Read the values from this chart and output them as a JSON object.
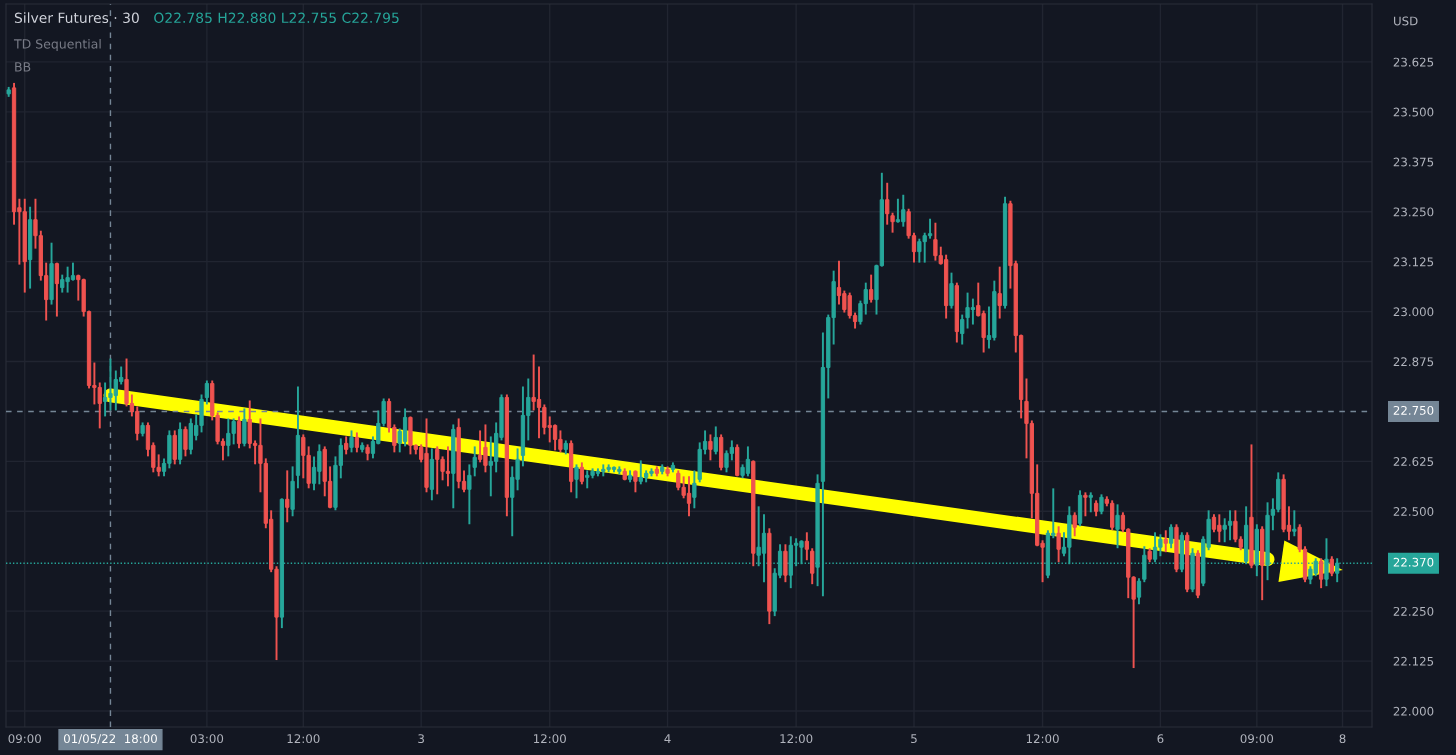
{
  "chart_data": {
    "type": "candlestick",
    "title": "Silver Futures · 30",
    "annotations": [
      "O22.785 H22.880 L22.755 C22.795",
      "TD Sequential",
      "BB",
      "USD"
    ],
    "categories": [
      null,
      null,
      null,
      "09:00",
      null,
      null,
      null,
      null,
      null,
      null,
      null,
      null,
      null,
      null,
      null,
      null,
      null,
      null,
      null,
      "01/05/22  18:00",
      null,
      null,
      null,
      null,
      null,
      null,
      null,
      null,
      null,
      null,
      null,
      null,
      null,
      null,
      null,
      null,
      null,
      "03:00",
      null,
      null,
      null,
      null,
      null,
      null,
      null,
      null,
      null,
      null,
      null,
      null,
      null,
      null,
      null,
      null,
      null,
      "12:00",
      null,
      null,
      null,
      null,
      null,
      null,
      null,
      null,
      null,
      null,
      null,
      null,
      null,
      null,
      null,
      null,
      null,
      null,
      null,
      null,
      null,
      "3",
      null,
      null,
      null,
      null,
      null,
      null,
      null,
      null,
      null,
      null,
      null,
      null,
      null,
      null,
      null,
      null,
      null,
      null,
      null,
      null,
      null,
      null,
      null,
      "12:00",
      null,
      null,
      null,
      null,
      null,
      null,
      null,
      null,
      null,
      null,
      null,
      null,
      null,
      null,
      null,
      null,
      null,
      null,
      null,
      null,
      null,
      "4",
      null,
      null,
      null,
      null,
      null,
      null,
      null,
      null,
      null,
      null,
      null,
      null,
      null,
      null,
      null,
      null,
      null,
      null,
      null,
      null,
      null,
      null,
      null,
      "12:00",
      null,
      null,
      null,
      null,
      null,
      null,
      null,
      null,
      null,
      null,
      null,
      null,
      null,
      null,
      null,
      null,
      null,
      null,
      null,
      null,
      null,
      "5",
      null,
      null,
      null,
      null,
      null,
      null,
      null,
      null,
      null,
      null,
      null,
      null,
      null,
      null,
      null,
      null,
      null,
      null,
      null,
      null,
      null,
      null,
      null,
      "12:00",
      null,
      null,
      null,
      null,
      null,
      null,
      null,
      null,
      null,
      null,
      null,
      null,
      null,
      null,
      null,
      null,
      null,
      null,
      null,
      null,
      null,
      "6",
      null,
      null,
      null,
      null,
      null,
      null,
      null,
      null,
      null,
      null,
      null,
      null,
      null,
      null,
      null,
      null,
      null,
      "09:00",
      null,
      null,
      null,
      null,
      null,
      null,
      null,
      null,
      null,
      null,
      null,
      null,
      null,
      null,
      null,
      "8",
      null,
      null,
      null,
      null,
      null
    ],
    "ohlc": [
      [
        23.545,
        23.56,
        23.54,
        23.555
      ],
      [
        23.56,
        23.57,
        23.22,
        23.25
      ],
      [
        23.26,
        23.28,
        23.12,
        23.25
      ],
      [
        23.25,
        23.28,
        23.05,
        23.125
      ],
      [
        23.13,
        23.26,
        23.06,
        23.23
      ],
      [
        23.23,
        23.28,
        23.16,
        23.19
      ],
      [
        23.19,
        23.2,
        23.08,
        23.09
      ],
      [
        23.09,
        23.12,
        22.98,
        23.03
      ],
      [
        23.03,
        23.17,
        23.02,
        23.12
      ],
      [
        23.12,
        23.12,
        22.99,
        23.07
      ],
      [
        23.06,
        23.09,
        23.05,
        23.08
      ],
      [
        23.075,
        23.11,
        23.05,
        23.085
      ],
      [
        23.08,
        23.12,
        23.08,
        23.09
      ],
      [
        23.09,
        23.09,
        23.03,
        23.08
      ],
      [
        23.08,
        23.08,
        22.99,
        23.0
      ],
      [
        23.0,
        23.0,
        22.81,
        22.815
      ],
      [
        22.815,
        22.87,
        22.77,
        22.81
      ],
      [
        22.81,
        22.82,
        22.71,
        22.77
      ],
      [
        22.775,
        22.82,
        22.74,
        22.785
      ],
      [
        22.785,
        22.88,
        22.755,
        22.795
      ],
      [
        22.79,
        22.85,
        22.755,
        22.83
      ],
      [
        22.825,
        22.86,
        22.82,
        22.835
      ],
      [
        22.83,
        22.88,
        22.765,
        22.77
      ],
      [
        22.77,
        22.79,
        22.74,
        22.75
      ],
      [
        22.75,
        22.76,
        22.68,
        22.695
      ],
      [
        22.695,
        22.72,
        22.69,
        22.715
      ],
      [
        22.715,
        22.72,
        22.64,
        22.655
      ],
      [
        22.665,
        22.67,
        22.6,
        22.61
      ],
      [
        22.61,
        22.64,
        22.59,
        22.6
      ],
      [
        22.6,
        22.63,
        22.59,
        22.62
      ],
      [
        22.62,
        22.7,
        22.61,
        22.69
      ],
      [
        22.69,
        22.7,
        22.62,
        22.63
      ],
      [
        22.63,
        22.72,
        22.62,
        22.705
      ],
      [
        22.705,
        22.71,
        22.64,
        22.655
      ],
      [
        22.655,
        22.73,
        22.645,
        22.72
      ],
      [
        22.69,
        22.74,
        22.68,
        22.715
      ],
      [
        22.715,
        22.79,
        22.7,
        22.78
      ],
      [
        22.785,
        22.825,
        22.77,
        22.82
      ],
      [
        22.82,
        22.825,
        22.73,
        22.74
      ],
      [
        22.74,
        22.745,
        22.67,
        22.675
      ],
      [
        22.675,
        22.68,
        22.63,
        22.665
      ],
      [
        22.665,
        22.73,
        22.64,
        22.695
      ],
      [
        22.695,
        22.73,
        22.67,
        22.725
      ],
      [
        22.725,
        22.735,
        22.66,
        22.67
      ],
      [
        22.67,
        22.755,
        22.665,
        22.73
      ],
      [
        22.73,
        22.775,
        22.66,
        22.67
      ],
      [
        22.67,
        22.675,
        22.62,
        22.665
      ],
      [
        22.665,
        22.73,
        22.55,
        22.62
      ],
      [
        22.62,
        22.63,
        22.46,
        22.47
      ],
      [
        22.48,
        22.5,
        22.35,
        22.355
      ],
      [
        22.355,
        22.36,
        22.13,
        22.235
      ],
      [
        22.235,
        22.53,
        22.21,
        22.53
      ],
      [
        22.53,
        22.6,
        22.475,
        22.51
      ],
      [
        22.505,
        22.61,
        22.49,
        22.575
      ],
      [
        22.59,
        22.81,
        22.56,
        22.69
      ],
      [
        22.685,
        22.69,
        22.585,
        22.64
      ],
      [
        22.64,
        22.66,
        22.56,
        22.57
      ],
      [
        22.57,
        22.635,
        22.555,
        22.61
      ],
      [
        22.6,
        22.665,
        22.57,
        22.65
      ],
      [
        22.655,
        22.66,
        22.54,
        22.575
      ],
      [
        22.575,
        22.61,
        22.51,
        22.51
      ],
      [
        22.51,
        22.635,
        22.505,
        22.615
      ],
      [
        22.615,
        22.68,
        22.585,
        22.665
      ],
      [
        22.67,
        22.685,
        22.645,
        22.655
      ],
      [
        22.66,
        22.7,
        22.65,
        22.685
      ],
      [
        22.685,
        22.695,
        22.65,
        22.66
      ],
      [
        22.655,
        22.67,
        22.65,
        22.665
      ],
      [
        22.66,
        22.665,
        22.63,
        22.645
      ],
      [
        22.645,
        22.685,
        22.635,
        22.675
      ],
      [
        22.67,
        22.75,
        22.67,
        22.72
      ],
      [
        22.72,
        22.78,
        22.715,
        22.775
      ],
      [
        22.775,
        22.78,
        22.7,
        22.71
      ],
      [
        22.71,
        22.715,
        22.65,
        22.665
      ],
      [
        22.67,
        22.705,
        22.65,
        22.7
      ],
      [
        22.675,
        22.755,
        22.665,
        22.735
      ],
      [
        22.735,
        22.735,
        22.645,
        22.665
      ],
      [
        22.665,
        22.665,
        22.645,
        22.655
      ],
      [
        22.66,
        22.665,
        22.625,
        22.63
      ],
      [
        22.645,
        22.73,
        22.55,
        22.56
      ],
      [
        22.555,
        22.655,
        22.53,
        22.63
      ],
      [
        22.655,
        22.66,
        22.545,
        22.63
      ],
      [
        22.63,
        22.635,
        22.58,
        22.6
      ],
      [
        22.6,
        22.66,
        22.565,
        22.595
      ],
      [
        22.595,
        22.715,
        22.51,
        22.705
      ],
      [
        22.71,
        22.73,
        22.56,
        22.575
      ],
      [
        22.575,
        22.6,
        22.55,
        22.555
      ],
      [
        22.555,
        22.615,
        22.47,
        22.59
      ],
      [
        22.61,
        22.66,
        22.59,
        22.635
      ],
      [
        22.64,
        22.7,
        22.625,
        22.63
      ],
      [
        22.66,
        22.715,
        22.6,
        22.615
      ],
      [
        22.615,
        22.685,
        22.54,
        22.625
      ],
      [
        22.625,
        22.72,
        22.6,
        22.695
      ],
      [
        22.685,
        22.79,
        22.68,
        22.785
      ],
      [
        22.785,
        22.79,
        22.49,
        22.535
      ],
      [
        22.535,
        22.61,
        22.44,
        22.585
      ],
      [
        22.58,
        22.655,
        22.555,
        22.63
      ],
      [
        22.64,
        22.81,
        22.615,
        22.74
      ],
      [
        22.74,
        22.83,
        22.68,
        22.785
      ],
      [
        22.785,
        22.89,
        22.755,
        22.775
      ],
      [
        22.78,
        22.86,
        22.685,
        22.76
      ],
      [
        22.76,
        22.765,
        22.695,
        22.71
      ],
      [
        22.715,
        22.735,
        22.675,
        22.71
      ],
      [
        22.715,
        22.715,
        22.655,
        22.68
      ],
      [
        22.68,
        22.7,
        22.65,
        22.655
      ],
      [
        22.655,
        22.675,
        22.645,
        22.67
      ],
      [
        22.67,
        22.675,
        22.55,
        22.575
      ],
      [
        22.58,
        22.615,
        22.535,
        22.61
      ],
      [
        22.61,
        22.62,
        22.57,
        22.575
      ],
      [
        22.585,
        22.6,
        22.56,
        22.59
      ],
      [
        22.59,
        22.605,
        22.585,
        22.6
      ],
      [
        22.595,
        22.605,
        22.59,
        22.6
      ],
      [
        22.6,
        22.615,
        22.59,
        22.605
      ],
      [
        22.605,
        22.615,
        22.6,
        22.61
      ],
      [
        22.605,
        22.61,
        22.6,
        22.61
      ],
      [
        22.6,
        22.61,
        22.595,
        22.605
      ],
      [
        22.6,
        22.605,
        22.58,
        22.58
      ],
      [
        22.58,
        22.6,
        22.575,
        22.59
      ],
      [
        22.6,
        22.6,
        22.55,
        22.575
      ],
      [
        22.575,
        22.625,
        22.57,
        22.585
      ],
      [
        22.585,
        22.6,
        22.575,
        22.595
      ],
      [
        22.595,
        22.605,
        22.59,
        22.6
      ],
      [
        22.605,
        22.61,
        22.59,
        22.595
      ],
      [
        22.6,
        22.615,
        22.595,
        22.61
      ],
      [
        22.605,
        22.61,
        22.59,
        22.595
      ],
      [
        22.605,
        22.62,
        22.6,
        22.615
      ],
      [
        22.595,
        22.6,
        22.555,
        22.56
      ],
      [
        22.56,
        22.585,
        22.535,
        22.54
      ],
      [
        22.545,
        22.585,
        22.49,
        22.52
      ],
      [
        22.535,
        22.6,
        22.51,
        22.57
      ],
      [
        22.58,
        22.67,
        22.575,
        22.655
      ],
      [
        22.655,
        22.7,
        22.645,
        22.675
      ],
      [
        22.675,
        22.69,
        22.63,
        22.655
      ],
      [
        22.65,
        22.71,
        22.645,
        22.685
      ],
      [
        22.685,
        22.69,
        22.605,
        22.61
      ],
      [
        22.61,
        22.65,
        22.6,
        22.645
      ],
      [
        22.645,
        22.675,
        22.63,
        22.66
      ],
      [
        22.66,
        22.665,
        22.59,
        22.59
      ],
      [
        22.59,
        22.615,
        22.585,
        22.61
      ],
      [
        22.595,
        22.66,
        22.59,
        22.63
      ],
      [
        22.625,
        22.625,
        22.365,
        22.395
      ],
      [
        22.39,
        22.51,
        22.365,
        22.41
      ],
      [
        22.395,
        22.49,
        22.325,
        22.445
      ],
      [
        22.445,
        22.455,
        22.22,
        22.25
      ],
      [
        22.25,
        22.355,
        22.24,
        22.345
      ],
      [
        22.34,
        22.415,
        22.335,
        22.4
      ],
      [
        22.4,
        22.415,
        22.325,
        22.34
      ],
      [
        22.34,
        22.435,
        22.31,
        22.415
      ],
      [
        22.415,
        22.43,
        22.365,
        22.42
      ],
      [
        22.41,
        22.425,
        22.37,
        22.425
      ],
      [
        22.425,
        22.445,
        22.38,
        22.405
      ],
      [
        22.4,
        22.405,
        22.32,
        22.345
      ],
      [
        22.36,
        22.59,
        22.315,
        22.57
      ],
      [
        22.575,
        22.945,
        22.29,
        22.86
      ],
      [
        22.86,
        22.99,
        22.785,
        22.985
      ],
      [
        22.985,
        23.1,
        22.92,
        23.075
      ],
      [
        23.06,
        23.125,
        23.02,
        23.04
      ],
      [
        23.045,
        23.05,
        23.0,
        23.005
      ],
      [
        23.04,
        23.045,
        22.985,
        22.99
      ],
      [
        22.99,
        22.995,
        22.96,
        22.975
      ],
      [
        22.975,
        23.025,
        22.97,
        23.02
      ],
      [
        23.02,
        23.07,
        22.995,
        23.055
      ],
      [
        23.055,
        23.09,
        23.025,
        23.03
      ],
      [
        23.03,
        23.115,
        22.995,
        23.115
      ],
      [
        23.115,
        23.345,
        23.115,
        23.28
      ],
      [
        23.28,
        23.32,
        23.22,
        23.245
      ],
      [
        23.24,
        23.245,
        23.2,
        23.225
      ],
      [
        23.225,
        23.28,
        23.225,
        23.23
      ],
      [
        23.225,
        23.29,
        23.215,
        23.255
      ],
      [
        23.25,
        23.255,
        23.185,
        23.19
      ],
      [
        23.19,
        23.195,
        23.125,
        23.15
      ],
      [
        23.15,
        23.18,
        23.125,
        23.175
      ],
      [
        23.175,
        23.195,
        23.125,
        23.19
      ],
      [
        23.19,
        23.23,
        23.185,
        23.195
      ],
      [
        23.18,
        23.22,
        23.13,
        23.14
      ],
      [
        23.14,
        23.16,
        23.12,
        23.12
      ],
      [
        23.13,
        23.14,
        22.985,
        23.015
      ],
      [
        23.015,
        23.095,
        23.01,
        23.07
      ],
      [
        23.065,
        23.07,
        22.925,
        22.95
      ],
      [
        22.945,
        22.99,
        22.92,
        22.98
      ],
      [
        22.985,
        23.045,
        22.96,
        23.01
      ],
      [
        23.005,
        23.03,
        22.97,
        23.01
      ],
      [
        23.015,
        23.07,
        22.99,
        22.99
      ],
      [
        22.995,
        23.0,
        22.9,
        22.935
      ],
      [
        22.93,
        23.01,
        22.91,
        22.94
      ],
      [
        22.935,
        23.075,
        22.93,
        23.05
      ],
      [
        23.045,
        23.11,
        22.985,
        23.015
      ],
      [
        23.015,
        23.285,
        23.01,
        23.27
      ],
      [
        23.27,
        23.275,
        23.06,
        23.115
      ],
      [
        23.12,
        23.125,
        22.9,
        22.94
      ],
      [
        22.94,
        22.94,
        22.735,
        22.78
      ],
      [
        22.775,
        22.83,
        22.635,
        22.72
      ],
      [
        22.72,
        22.725,
        22.485,
        22.545
      ],
      [
        22.545,
        22.615,
        22.415,
        22.415
      ],
      [
        22.42,
        22.425,
        22.325,
        22.41
      ],
      [
        22.34,
        22.45,
        22.335,
        22.445
      ],
      [
        22.44,
        22.555,
        22.435,
        22.445
      ],
      [
        22.445,
        22.46,
        22.375,
        22.405
      ],
      [
        22.395,
        22.445,
        22.39,
        22.41
      ],
      [
        22.41,
        22.51,
        22.37,
        22.49
      ],
      [
        22.49,
        22.495,
        22.44,
        22.46
      ],
      [
        22.47,
        22.55,
        22.465,
        22.54
      ],
      [
        22.54,
        22.545,
        22.49,
        22.535
      ],
      [
        22.535,
        22.545,
        22.5,
        22.54
      ],
      [
        22.52,
        22.525,
        22.49,
        22.5
      ],
      [
        22.5,
        22.54,
        22.495,
        22.535
      ],
      [
        22.53,
        22.535,
        22.515,
        22.52
      ],
      [
        22.52,
        22.525,
        22.455,
        22.46
      ],
      [
        22.455,
        22.515,
        22.41,
        22.49
      ],
      [
        22.49,
        22.495,
        22.45,
        22.455
      ],
      [
        22.455,
        22.455,
        22.285,
        22.335
      ],
      [
        22.335,
        22.335,
        22.11,
        22.28
      ],
      [
        22.285,
        22.33,
        22.27,
        22.325
      ],
      [
        22.33,
        22.41,
        22.325,
        22.39
      ],
      [
        22.4,
        22.405,
        22.375,
        22.38
      ],
      [
        22.38,
        22.445,
        22.375,
        22.41
      ],
      [
        22.41,
        22.44,
        22.39,
        22.43
      ],
      [
        22.43,
        22.45,
        22.4,
        22.42
      ],
      [
        22.42,
        22.465,
        22.41,
        22.46
      ],
      [
        22.46,
        22.465,
        22.35,
        22.355
      ],
      [
        22.355,
        22.445,
        22.35,
        22.44
      ],
      [
        22.44,
        22.445,
        22.3,
        22.305
      ],
      [
        22.305,
        22.405,
        22.3,
        22.395
      ],
      [
        22.395,
        22.4,
        22.285,
        22.29
      ],
      [
        22.32,
        22.435,
        22.315,
        22.43
      ],
      [
        22.41,
        22.5,
        22.405,
        22.48
      ],
      [
        22.485,
        22.49,
        22.45,
        22.455
      ],
      [
        22.465,
        22.49,
        22.425,
        22.45
      ],
      [
        22.455,
        22.48,
        22.425,
        22.465
      ],
      [
        22.465,
        22.5,
        22.43,
        22.475
      ],
      [
        22.475,
        22.5,
        22.425,
        22.43
      ],
      [
        22.43,
        22.435,
        22.405,
        22.41
      ],
      [
        22.375,
        22.51,
        22.37,
        22.465
      ],
      [
        22.485,
        22.665,
        22.36,
        22.365
      ],
      [
        22.365,
        22.465,
        22.34,
        22.455
      ],
      [
        22.455,
        22.46,
        22.28,
        22.365
      ],
      [
        22.365,
        22.52,
        22.33,
        22.49
      ],
      [
        22.49,
        22.53,
        22.455,
        22.505
      ],
      [
        22.505,
        22.595,
        22.5,
        22.58
      ],
      [
        22.58,
        22.59,
        22.45,
        22.455
      ],
      [
        22.465,
        22.51,
        22.43,
        22.45
      ],
      [
        22.45,
        22.5,
        22.44,
        22.455
      ],
      [
        22.46,
        22.465,
        22.4,
        22.405
      ],
      [
        22.405,
        22.41,
        22.325,
        22.33
      ],
      [
        22.33,
        22.36,
        22.32,
        22.355
      ],
      [
        22.345,
        22.38,
        22.34,
        22.375
      ],
      [
        22.375,
        22.38,
        22.31,
        22.33
      ],
      [
        22.33,
        22.43,
        22.315,
        22.38
      ],
      [
        22.38,
        22.385,
        22.34,
        22.345
      ],
      [
        22.345,
        22.38,
        22.325,
        22.37
      ],
      null,
      null,
      null,
      null,
      null,
      null
    ],
    "colors": [
      "#26a69a",
      "#ef5350",
      "#ef5350",
      "#ef5350",
      "#26a69a",
      "#ef5350",
      "#ef5350",
      "#ef5350",
      "#26a69a",
      "#ef5350",
      "#26a69a",
      "#26a69a",
      "#26a69a",
      "#ef5350",
      "#ef5350",
      "#ef5350",
      "#ef5350",
      "#ef5350",
      "#26a69a",
      "#26a69a",
      "#26a69a",
      "#26a69a",
      "#ef5350",
      "#ef5350",
      "#ef5350",
      "#26a69a",
      "#ef5350",
      "#ef5350",
      "#ef5350",
      "#26a69a",
      "#26a69a",
      "#ef5350",
      "#26a69a",
      "#ef5350",
      "#26a69a",
      "#26a69a",
      "#26a69a",
      "#26a69a",
      "#ef5350",
      "#ef5350",
      "#ef5350",
      "#26a69a",
      "#26a69a",
      "#ef5350",
      "#26a69a",
      "#ef5350",
      "#ef5350",
      "#ef5350",
      "#ef5350",
      "#ef5350",
      "#ef5350",
      "#26a69a",
      "#ef5350",
      "#26a69a",
      "#26a69a",
      "#ef5350",
      "#ef5350",
      "#26a69a",
      "#26a69a",
      "#ef5350",
      "#ef5350",
      "#26a69a",
      "#26a69a",
      "#ef5350",
      "#26a69a",
      "#ef5350",
      "#26a69a",
      "#ef5350",
      "#26a69a",
      "#26a69a",
      "#26a69a",
      "#ef5350",
      "#ef5350",
      "#26a69a",
      "#26a69a",
      "#ef5350",
      "#ef5350",
      "#ef5350",
      "#ef5350",
      "#26a69a",
      "#ef5350",
      "#ef5350",
      "#ef5350",
      "#26a69a",
      "#ef5350",
      "#ef5350",
      "#26a69a",
      "#26a69a",
      "#ef5350",
      "#ef5350",
      "#26a69a",
      "#26a69a",
      "#26a69a",
      "#ef5350",
      "#26a69a",
      "#26a69a",
      "#26a69a",
      "#26a69a",
      "#ef5350",
      "#ef5350",
      "#ef5350",
      "#ef5350",
      "#ef5350",
      "#ef5350",
      "#26a69a",
      "#ef5350",
      "#26a69a",
      "#ef5350",
      "#26a69a",
      "#26a69a",
      "#26a69a",
      "#26a69a",
      "#26a69a",
      "#26a69a",
      "#26a69a",
      "#ef5350",
      "#26a69a",
      "#ef5350",
      "#26a69a",
      "#26a69a",
      "#26a69a",
      "#ef5350",
      "#26a69a",
      "#ef5350",
      "#26a69a",
      "#ef5350",
      "#ef5350",
      "#ef5350",
      "#26a69a",
      "#26a69a",
      "#26a69a",
      "#ef5350",
      "#26a69a",
      "#ef5350",
      "#26a69a",
      "#26a69a",
      "#ef5350",
      "#26a69a",
      "#26a69a",
      "#ef5350",
      "#26a69a",
      "#26a69a",
      "#ef5350",
      "#26a69a",
      "#26a69a",
      "#ef5350",
      "#26a69a",
      "#26a69a",
      "#26a69a",
      "#ef5350",
      "#ef5350",
      "#26a69a",
      "#26a69a",
      "#26a69a",
      "#26a69a",
      "#ef5350",
      "#ef5350",
      "#ef5350",
      "#ef5350",
      "#26a69a",
      "#26a69a",
      "#ef5350",
      "#26a69a",
      "#26a69a",
      "#ef5350",
      "#ef5350",
      "#26a69a",
      "#26a69a",
      "#ef5350",
      "#ef5350",
      "#26a69a",
      "#26a69a",
      "#26a69a",
      "#ef5350",
      "#ef5350",
      "#ef5350",
      "#26a69a",
      "#ef5350",
      "#26a69a",
      "#26a69a",
      "#26a69a",
      "#ef5350",
      "#ef5350",
      "#26a69a",
      "#26a69a",
      "#ef5350",
      "#26a69a",
      "#ef5350",
      "#ef5350",
      "#ef5350",
      "#ef5350",
      "#ef5350",
      "#ef5350",
      "#ef5350",
      "#26a69a",
      "#26a69a",
      "#ef5350",
      "#26a69a",
      "#26a69a",
      "#ef5350",
      "#26a69a",
      "#ef5350",
      "#26a69a",
      "#ef5350",
      "#26a69a",
      "#ef5350",
      "#ef5350",
      "#26a69a",
      "#ef5350",
      "#ef5350",
      "#ef5350",
      "#26a69a",
      "#26a69a",
      "#ef5350",
      "#26a69a",
      "#26a69a",
      "#ef5350",
      "#26a69a",
      "#ef5350",
      "#26a69a",
      "#ef5350",
      "#26a69a",
      "#ef5350",
      "#26a69a",
      "#26a69a",
      "#ef5350",
      "#ef5350",
      "#26a69a",
      "#26a69a",
      "#ef5350",
      "#ef5350",
      "#26a69a",
      "#ef5350",
      "#26a69a",
      "#ef5350",
      "#26a69a",
      "#26a69a",
      "#26a69a",
      "#ef5350",
      "#ef5350",
      "#26a69a",
      "#ef5350",
      "#ef5350",
      "#26a69a",
      "#26a69a",
      "#ef5350",
      "#26a69a",
      "#ef5350",
      "#26a69a",
      null,
      null,
      null,
      null,
      null,
      null
    ],
    "series": [
      {
        "type": "line",
        "color": "#ffff00",
        "values": [
          null,
          null,
          null,
          null,
          null,
          null,
          null,
          null,
          null,
          null,
          null,
          null,
          null,
          null,
          null,
          null,
          null,
          null,
          null,
          22.79,
          null,
          null,
          null,
          null,
          null,
          null,
          null,
          null,
          null,
          null,
          null,
          null,
          null,
          null,
          null,
          null,
          null,
          null,
          null,
          null,
          null,
          null,
          null,
          null,
          null,
          null,
          null,
          null,
          null,
          null,
          null,
          null,
          null,
          null,
          null,
          null,
          null,
          null,
          null,
          null,
          null,
          null,
          null,
          null,
          null,
          null,
          null,
          null,
          null,
          null,
          null,
          null,
          null,
          null,
          null,
          null,
          null,
          null,
          null,
          null,
          null,
          null,
          null,
          null,
          null,
          null,
          null,
          null,
          null,
          null,
          null,
          null,
          null,
          null,
          null,
          null,
          null,
          null,
          null,
          null,
          null,
          null,
          null,
          null,
          null,
          null,
          null,
          null,
          null,
          null,
          null,
          null,
          null,
          null,
          null,
          null,
          null,
          null,
          null,
          null,
          null,
          null,
          null,
          null,
          null,
          null,
          null,
          null,
          null,
          null,
          null,
          null,
          null,
          null,
          null,
          null,
          null,
          null,
          null,
          null,
          null,
          null,
          null,
          null,
          null,
          null,
          null,
          null,
          null,
          null,
          null,
          null,
          null,
          null,
          null,
          null,
          null,
          null,
          null,
          null,
          null,
          null,
          null,
          null,
          null,
          null,
          null,
          null,
          null,
          null,
          null,
          null,
          null,
          null,
          null,
          null,
          null,
          null,
          null,
          null,
          null,
          null,
          null,
          null,
          null,
          null,
          null,
          null,
          null,
          null,
          null,
          null,
          null,
          null,
          null,
          null,
          null,
          null,
          null,
          null,
          null,
          null,
          null,
          null,
          null,
          null,
          null,
          null,
          null,
          null,
          null,
          null,
          null,
          null,
          null,
          null,
          null,
          null,
          null,
          null,
          null,
          null,
          null,
          null,
          null,
          null,
          null,
          null,
          null,
          null,
          null,
          null,
          null,
          null,
          null,
          22.38,
          null,
          null,
          null,
          null,
          null,
          null,
          null,
          null,
          null,
          null,
          null,
          null,
          null,
          null,
          null,
          null,
          null,
          null,
          null
        ]
      }
    ],
    "ylim": [
      21.96,
      23.77
    ],
    "yticks": [
      {
        "value": 22.0,
        "label": "22.000"
      },
      22.125,
      {
        "value": 22.25,
        "label": "22.250"
      },
      {
        "value": 22.5,
        "label": "22.500"
      },
      22.625,
      22.875,
      {
        "value": 23.0,
        "label": "23.000"
      },
      23.125,
      {
        "value": 23.25,
        "label": "23.250"
      },
      23.375,
      {
        "value": 23.5,
        "label": "23.500"
      },
      23.625
    ],
    "ref_lines": [
      {
        "axis": "x",
        "value": "01/05/22  18:00",
        "color": "#758696",
        "line_style": "dashed"
      },
      {
        "axis": "y",
        "value": 22.75,
        "label": "22.750",
        "color": "#758696",
        "line_style": "dashed"
      },
      {
        "axis": "y",
        "value": 22.37,
        "label": "22.370",
        "color": "#26a69a",
        "line_style": "dotted"
      }
    ],
    "grid": true
  }
}
